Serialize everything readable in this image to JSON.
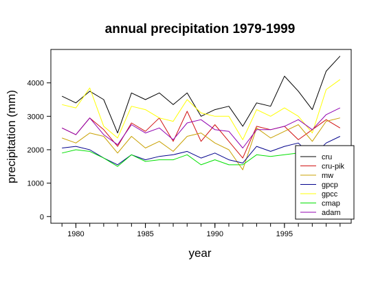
{
  "chart_data": {
    "type": "line",
    "title": "annual precipitation 1979-1999",
    "xlabel": "year",
    "ylabel": "precipitation (mm)",
    "xlim": [
      1978.2,
      1999.8
    ],
    "ylim": [
      -200,
      5000
    ],
    "xticks": [
      1980,
      1985,
      1990,
      1995
    ],
    "yticks": [
      0,
      1000,
      2000,
      3000,
      4000
    ],
    "grid": false,
    "legend_position": "bottom-right",
    "x": [
      1979,
      1980,
      1981,
      1982,
      1983,
      1984,
      1985,
      1986,
      1987,
      1988,
      1989,
      1990,
      1991,
      1992,
      1993,
      1994,
      1995,
      1996,
      1997,
      1998,
      1999
    ],
    "series": [
      {
        "name": "cru",
        "color": "#000000",
        "values": [
          3600,
          3400,
          3750,
          3500,
          2500,
          3700,
          3500,
          3700,
          3350,
          3700,
          3000,
          3200,
          3300,
          2700,
          3400,
          3300,
          4200,
          3750,
          3200,
          4350,
          4800
        ]
      },
      {
        "name": "cru-pik",
        "color": "#d01010",
        "values": [
          2650,
          2450,
          2950,
          2600,
          2100,
          2800,
          2550,
          2950,
          2250,
          3150,
          2250,
          2750,
          2250,
          1750,
          2700,
          2600,
          2700,
          2300,
          2600,
          2900,
          2650
        ]
      },
      {
        "name": "mw",
        "color": "#c8a000",
        "values": [
          2350,
          2200,
          2500,
          2400,
          1900,
          2400,
          2050,
          2250,
          1950,
          2400,
          2500,
          2200,
          2000,
          1400,
          2650,
          2350,
          2550,
          2750,
          2250,
          2850,
          2950
        ]
      },
      {
        "name": "gpcp",
        "color": "#00008b",
        "values": [
          2050,
          2100,
          2000,
          1750,
          1550,
          1850,
          1700,
          1800,
          1850,
          1950,
          1750,
          1900,
          1700,
          1600,
          2100,
          1950,
          2100,
          2200,
          1800,
          2200,
          2400
        ]
      },
      {
        "name": "gpcc",
        "color": "#ffff00",
        "values": [
          3350,
          3250,
          3850,
          2700,
          2350,
          3300,
          3200,
          2950,
          2850,
          3500,
          3100,
          3000,
          3000,
          2300,
          3200,
          3000,
          3250,
          3000,
          2500,
          3800,
          4100
        ]
      },
      {
        "name": "cmap",
        "color": "#00e000",
        "values": [
          1900,
          2000,
          1950,
          1750,
          1500,
          1850,
          1650,
          1700,
          1700,
          1850,
          1550,
          1700,
          1550,
          1550,
          1850,
          1800,
          1850,
          1900,
          1700,
          2050,
          2100
        ]
      },
      {
        "name": "adam",
        "color": "#9000b0",
        "values": [
          2650,
          2450,
          2950,
          2450,
          2150,
          2750,
          2500,
          2650,
          2300,
          2800,
          2900,
          2600,
          2550,
          2050,
          2600,
          2600,
          2700,
          2900,
          2600,
          3050,
          3250
        ]
      }
    ]
  }
}
